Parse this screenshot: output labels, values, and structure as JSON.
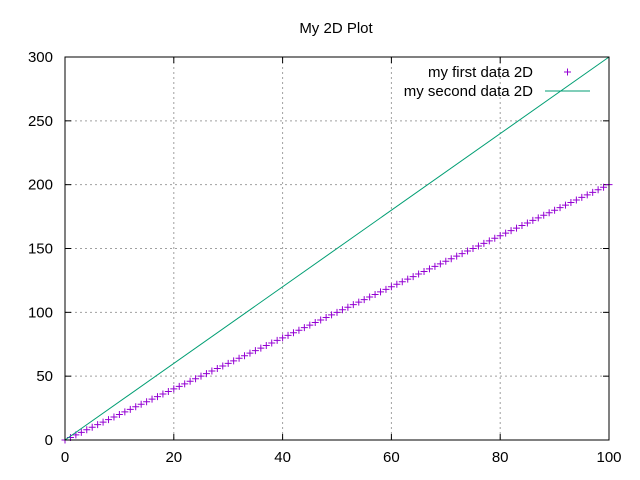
{
  "chart_data": {
    "type": "scatter",
    "title": "My 2D Plot",
    "xlabel": "",
    "ylabel": "",
    "xlim": [
      0,
      100
    ],
    "ylim": [
      0,
      300
    ],
    "x_ticks": [
      0,
      20,
      40,
      60,
      80,
      100
    ],
    "y_ticks": [
      0,
      50,
      100,
      150,
      200,
      250,
      300
    ],
    "grid": true,
    "legend_position": "top-right",
    "series": [
      {
        "name": "my first data 2D",
        "style": "points",
        "marker": "plus",
        "color": "#9400d3",
        "function": "y = 2x",
        "x": [
          0,
          1,
          2,
          3,
          4,
          5,
          6,
          7,
          8,
          9,
          10,
          11,
          12,
          13,
          14,
          15,
          16,
          17,
          18,
          19,
          20,
          21,
          22,
          23,
          24,
          25,
          26,
          27,
          28,
          29,
          30,
          31,
          32,
          33,
          34,
          35,
          36,
          37,
          38,
          39,
          40,
          41,
          42,
          43,
          44,
          45,
          46,
          47,
          48,
          49,
          50,
          51,
          52,
          53,
          54,
          55,
          56,
          57,
          58,
          59,
          60,
          61,
          62,
          63,
          64,
          65,
          66,
          67,
          68,
          69,
          70,
          71,
          72,
          73,
          74,
          75,
          76,
          77,
          78,
          79,
          80,
          81,
          82,
          83,
          84,
          85,
          86,
          87,
          88,
          89,
          90,
          91,
          92,
          93,
          94,
          95,
          96,
          97,
          98,
          99,
          100
        ],
        "y": [
          0,
          2,
          4,
          6,
          8,
          10,
          12,
          14,
          16,
          18,
          20,
          22,
          24,
          26,
          28,
          30,
          32,
          34,
          36,
          38,
          40,
          42,
          44,
          46,
          48,
          50,
          52,
          54,
          56,
          58,
          60,
          62,
          64,
          66,
          68,
          70,
          72,
          74,
          76,
          78,
          80,
          82,
          84,
          86,
          88,
          90,
          92,
          94,
          96,
          98,
          100,
          102,
          104,
          106,
          108,
          110,
          112,
          114,
          116,
          118,
          120,
          122,
          124,
          126,
          128,
          130,
          132,
          134,
          136,
          138,
          140,
          142,
          144,
          146,
          148,
          150,
          152,
          154,
          156,
          158,
          160,
          162,
          164,
          166,
          168,
          170,
          172,
          174,
          176,
          178,
          180,
          182,
          184,
          186,
          188,
          190,
          192,
          194,
          196,
          198,
          200
        ]
      },
      {
        "name": "my second data 2D",
        "style": "line",
        "color": "#009e73",
        "function": "y = 3x",
        "x": [
          0,
          100
        ],
        "y": [
          0,
          300
        ]
      }
    ]
  }
}
